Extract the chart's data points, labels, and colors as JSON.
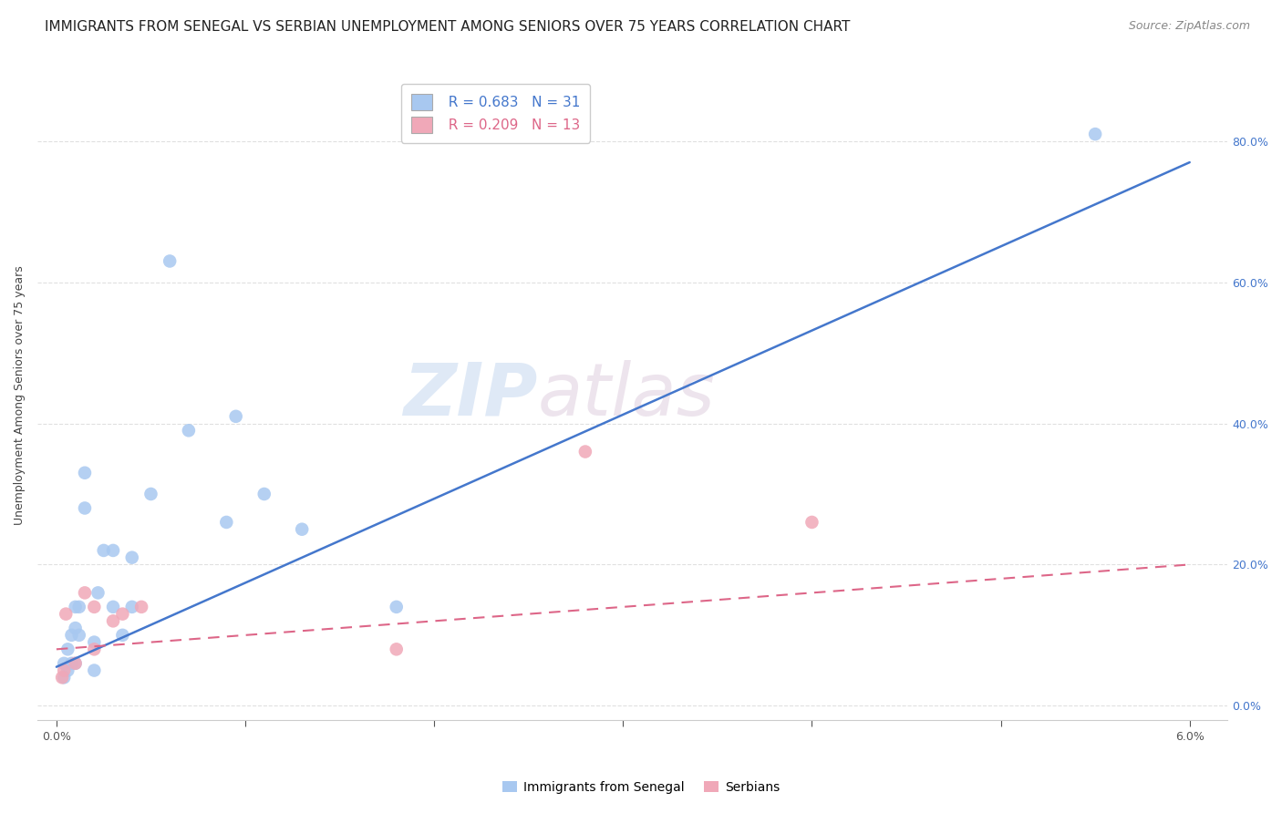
{
  "title": "IMMIGRANTS FROM SENEGAL VS SERBIAN UNEMPLOYMENT AMONG SENIORS OVER 75 YEARS CORRELATION CHART",
  "source": "Source: ZipAtlas.com",
  "ylabel": "Unemployment Among Seniors over 75 years",
  "xlabel_legend_left": "Immigrants from Senegal",
  "xlabel_legend_right": "Serbians",
  "legend_blue_r": "R = 0.683",
  "legend_blue_n": "N = 31",
  "legend_pink_r": "R = 0.209",
  "legend_pink_n": "N = 13",
  "xlim": [
    -0.001,
    0.062
  ],
  "ylim": [
    -0.02,
    0.9
  ],
  "right_yticks": [
    0.0,
    0.2,
    0.4,
    0.6,
    0.8
  ],
  "right_yticklabels": [
    "0.0%",
    "20.0%",
    "40.0%",
    "60.0%",
    "80.0%"
  ],
  "xticks": [
    0.0,
    0.01,
    0.02,
    0.03,
    0.04,
    0.05,
    0.06
  ],
  "xticklabels": [
    "0.0%",
    "",
    "",
    "",
    "",
    "",
    "6.0%"
  ],
  "blue_scatter_x": [
    0.0004,
    0.0004,
    0.0006,
    0.0006,
    0.0008,
    0.0008,
    0.001,
    0.001,
    0.001,
    0.0012,
    0.0012,
    0.0015,
    0.0015,
    0.002,
    0.002,
    0.0022,
    0.0025,
    0.003,
    0.003,
    0.0035,
    0.004,
    0.004,
    0.005,
    0.006,
    0.007,
    0.009,
    0.0095,
    0.011,
    0.013,
    0.018,
    0.055
  ],
  "blue_scatter_y": [
    0.04,
    0.06,
    0.05,
    0.08,
    0.06,
    0.1,
    0.06,
    0.11,
    0.14,
    0.1,
    0.14,
    0.28,
    0.33,
    0.05,
    0.09,
    0.16,
    0.22,
    0.14,
    0.22,
    0.1,
    0.14,
    0.21,
    0.3,
    0.63,
    0.39,
    0.26,
    0.41,
    0.3,
    0.25,
    0.14,
    0.81
  ],
  "pink_scatter_x": [
    0.0003,
    0.0004,
    0.0005,
    0.001,
    0.0015,
    0.002,
    0.002,
    0.003,
    0.0035,
    0.0045,
    0.018,
    0.028,
    0.04
  ],
  "pink_scatter_y": [
    0.04,
    0.05,
    0.13,
    0.06,
    0.16,
    0.08,
    0.14,
    0.12,
    0.13,
    0.14,
    0.08,
    0.36,
    0.26
  ],
  "blue_line_x": [
    0.0,
    0.06
  ],
  "blue_line_y": [
    0.055,
    0.77
  ],
  "pink_line_x": [
    0.0,
    0.06
  ],
  "pink_line_y": [
    0.08,
    0.2
  ],
  "watermark_zip": "ZIP",
  "watermark_atlas": "atlas",
  "background_color": "#ffffff",
  "blue_color": "#a8c8f0",
  "pink_color": "#f0a8b8",
  "blue_line_color": "#4477cc",
  "pink_line_color": "#dd6688",
  "grid_color": "#e0e0e0",
  "title_fontsize": 11,
  "source_fontsize": 9,
  "axis_label_fontsize": 9,
  "tick_fontsize": 9,
  "legend_fontsize": 11
}
